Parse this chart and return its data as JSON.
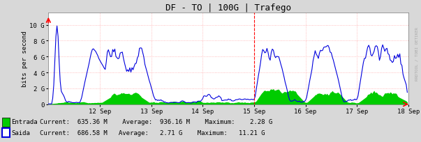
{
  "title": "DF - TO | 100G | Trafego",
  "ylabel": "bits per second",
  "background_color": "#d8d8d8",
  "plot_bg_color": "#ffffff",
  "grid_color": "#ffaaaa",
  "title_fontsize": 9,
  "ylabel_fontsize": 6.5,
  "tick_fontsize": 6.5,
  "xlim": [
    0,
    336
  ],
  "ylim": [
    0,
    11500000000.0
  ],
  "yticks": [
    0,
    2000000000.0,
    4000000000.0,
    6000000000.0,
    8000000000.0,
    10000000000.0
  ],
  "ytick_labels": [
    "0",
    "2 G",
    "4 G",
    "6 G",
    "8 G",
    "10 G"
  ],
  "xtick_positions": [
    48,
    96,
    144,
    192,
    240,
    288,
    336
  ],
  "xtick_labels": [
    "12 Sep",
    "13 Sep",
    "14 Sep",
    "15 Sep",
    "16 Sep",
    "17 Sep",
    "18 Sep"
  ],
  "entrada_color": "#00cc00",
  "saida_color": "#0000dd",
  "watermark": "RRDTOOL / TOBI OETIKER",
  "legend_items": [
    {
      "label": "Entrada",
      "color": "#00cc00",
      "current": "635.36 M",
      "average": "936.16 M",
      "maximum": "2.28 G"
    },
    {
      "label": "Saida",
      "color": "#0000dd",
      "current": "686.58 M",
      "average": "2.71 G",
      "maximum": "11.21 G"
    }
  ],
  "vline_x": 192,
  "vline_color": "#ff0000"
}
